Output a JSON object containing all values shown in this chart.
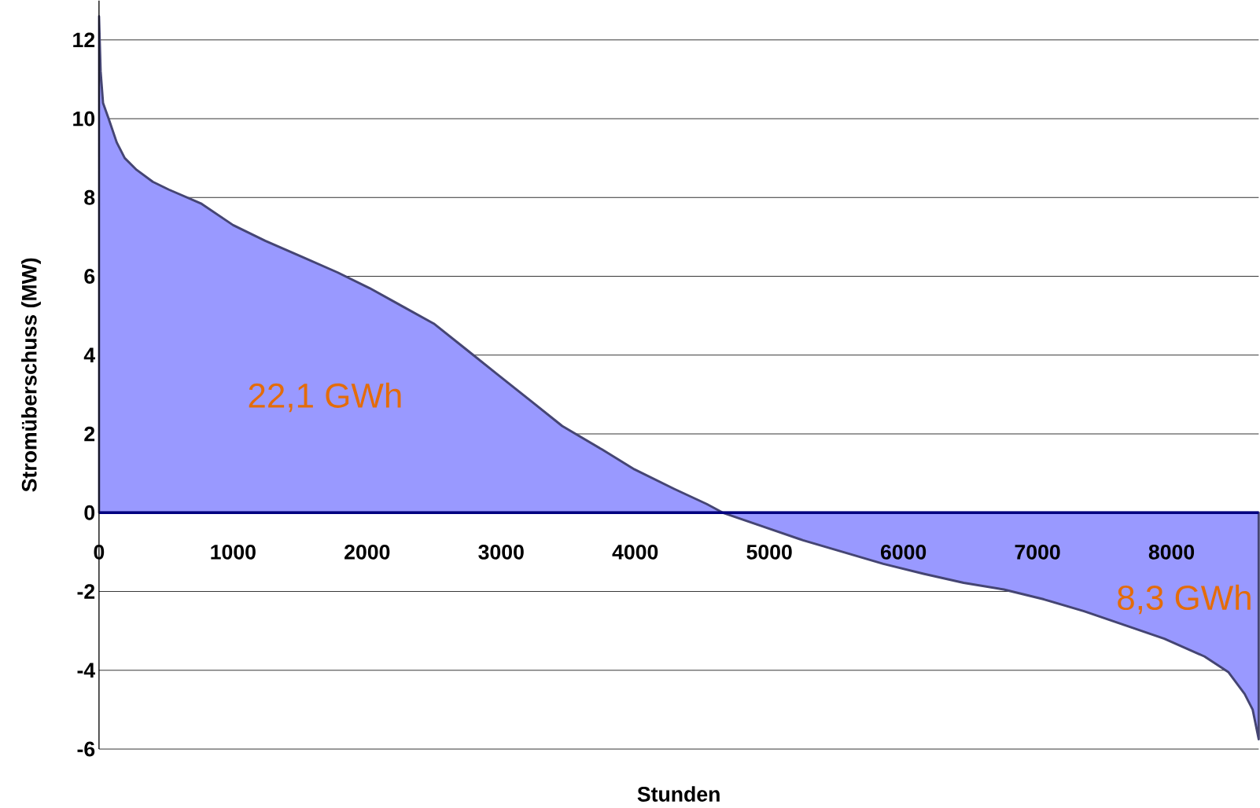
{
  "chart_data": {
    "type": "area",
    "xlabel": "Stunden",
    "ylabel": "Stromüberschuss (MW)",
    "x": [
      0,
      12,
      30,
      72,
      132,
      192,
      281,
      401,
      521,
      760,
      1000,
      1240,
      1509,
      1778,
      2018,
      2257,
      2497,
      2737,
      2976,
      3216,
      3455,
      3754,
      3994,
      4293,
      4533,
      4653,
      4952,
      5251,
      5551,
      5850,
      6150,
      6449,
      6749,
      7048,
      7347,
      7647,
      7946,
      8246,
      8425,
      8545,
      8605,
      8650
    ],
    "values": [
      12.6,
      11.2,
      10.4,
      10.0,
      9.4,
      9.0,
      8.7,
      8.4,
      8.2,
      7.85,
      7.3,
      6.9,
      6.5,
      6.1,
      5.7,
      5.25,
      4.8,
      4.15,
      3.5,
      2.85,
      2.2,
      1.6,
      1.1,
      0.6,
      0.22,
      0,
      -0.35,
      -0.7,
      -1.0,
      -1.3,
      -1.55,
      -1.78,
      -1.95,
      -2.2,
      -2.5,
      -2.85,
      -3.2,
      -3.65,
      -4.05,
      -4.6,
      -5.0,
      -5.75
    ],
    "color": "#9999ff",
    "xlim": [
      0,
      8650
    ],
    "xticks": [
      0,
      1000,
      2000,
      3000,
      4000,
      5000,
      6000,
      7000,
      8000
    ],
    "ylim": [
      -6,
      13
    ],
    "yticks": [
      -6,
      -4,
      -2,
      0,
      2,
      4,
      6,
      8,
      10,
      12
    ],
    "grid": "y",
    "annotations": [
      "22,1 GWh",
      "8,3 GWh"
    ]
  }
}
